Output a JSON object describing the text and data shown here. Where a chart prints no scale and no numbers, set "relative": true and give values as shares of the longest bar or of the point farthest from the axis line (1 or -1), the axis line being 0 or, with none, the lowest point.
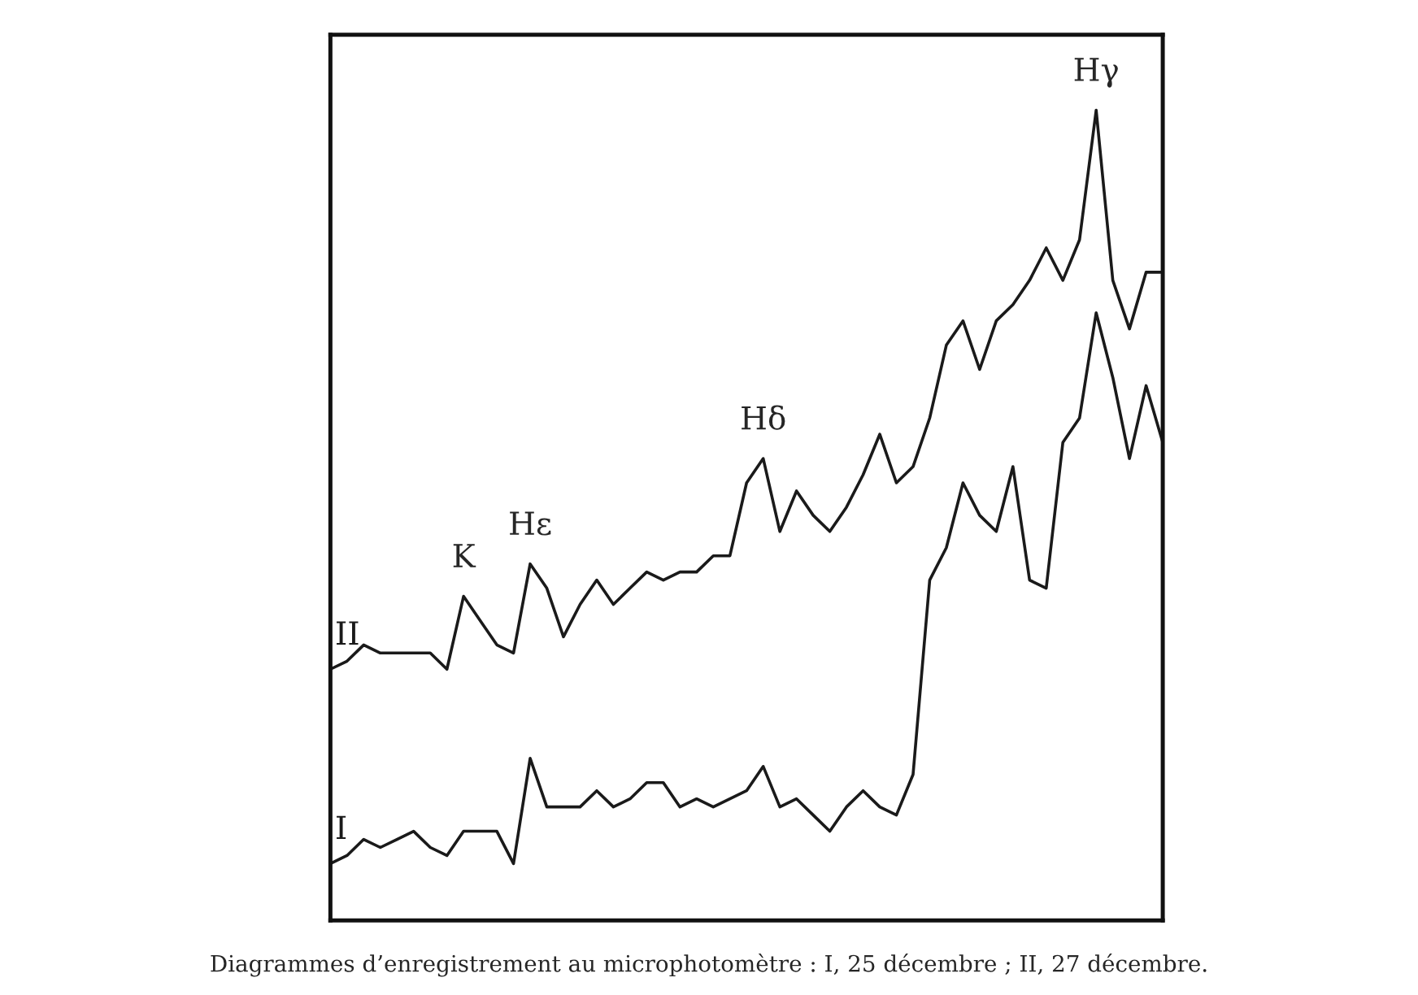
{
  "chart_data": {
    "type": "line",
    "relative": true,
    "categories": [
      null,
      null,
      null,
      null,
      null,
      null,
      null,
      null,
      null,
      null,
      null,
      null,
      null,
      null,
      null,
      null,
      null,
      null,
      null,
      null,
      null,
      null,
      null,
      null,
      null,
      null,
      null,
      null,
      null,
      null,
      null,
      null,
      null,
      null,
      null,
      null,
      null,
      null,
      null,
      null,
      null,
      null,
      null,
      null,
      null,
      null,
      null,
      null,
      null,
      null,
      null
    ],
    "series": [
      {
        "name": "I",
        "color": "#1a1a1a",
        "values": [
          0.07,
          0.08,
          0.1,
          0.09,
          0.1,
          0.11,
          0.09,
          0.08,
          0.11,
          0.11,
          0.11,
          0.07,
          0.2,
          0.14,
          0.14,
          0.14,
          0.16,
          0.14,
          0.15,
          0.17,
          0.17,
          0.14,
          0.15,
          0.14,
          0.15,
          0.16,
          0.19,
          0.14,
          0.15,
          0.13,
          0.11,
          0.14,
          0.16,
          0.14,
          0.13,
          0.18,
          0.42,
          0.46,
          0.54,
          0.5,
          0.48,
          0.56,
          0.42,
          0.41,
          0.59,
          0.62,
          0.75,
          0.67,
          0.57,
          0.66,
          0.59
        ]
      },
      {
        "name": "II",
        "color": "#1a1a1a",
        "values": [
          0.31,
          0.32,
          0.34,
          0.33,
          0.33,
          0.33,
          0.33,
          0.31,
          0.4,
          0.37,
          0.34,
          0.33,
          0.44,
          0.41,
          0.35,
          0.39,
          0.42,
          0.39,
          0.41,
          0.43,
          0.42,
          0.43,
          0.43,
          0.45,
          0.45,
          0.54,
          0.57,
          0.48,
          0.53,
          0.5,
          0.48,
          0.51,
          0.55,
          0.6,
          0.54,
          0.56,
          0.62,
          0.71,
          0.74,
          0.68,
          0.74,
          0.76,
          0.79,
          0.83,
          0.79,
          0.84,
          1,
          0.79,
          0.73,
          0.8,
          0.8
        ]
      }
    ],
    "annotations": [
      {
        "text": "K",
        "y": 0.4
      },
      {
        "text": "Hε",
        "y": 0.44
      },
      {
        "text": "Hδ",
        "y": 0.57
      },
      {
        "text": "Hγ",
        "y": 1
      },
      "Diagrammes d’enregistrement au microphotomètre : I, 25 décembre ; II, 27 décembre."
    ],
    "line_style": "solid",
    "marker": "none",
    "grid": false,
    "legend": false
  }
}
